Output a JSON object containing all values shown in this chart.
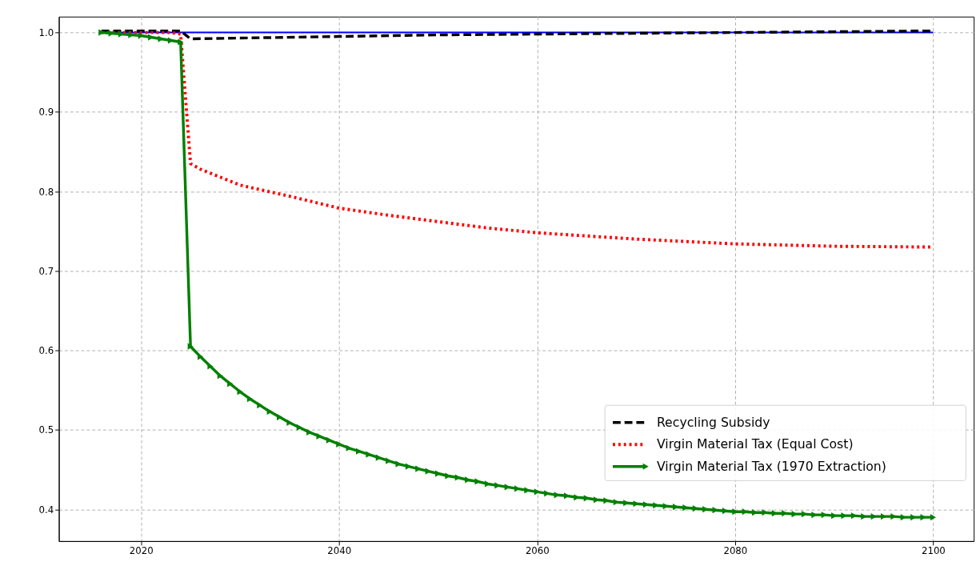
{
  "chart_data": {
    "type": "line",
    "xlim": [
      2011.7,
      2104.1
    ],
    "ylim": [
      0.36,
      1.02
    ],
    "xticks": [
      2020,
      2040,
      2060,
      2080,
      2100
    ],
    "yticks": [
      0.4,
      0.5,
      0.6,
      0.7,
      0.8,
      0.9,
      {
        "value": 1.0,
        "label": "1.0"
      }
    ],
    "grid": true,
    "legend": "bottom right",
    "series": [
      {
        "color": "#0000ff",
        "line_style": "solid",
        "x": [
          2016,
          2100
        ],
        "values": [
          1.0,
          1.0
        ]
      },
      {
        "name": "Recycling Subsidy",
        "color": "#000000",
        "line_style": "dashed",
        "x": [
          2016,
          2020,
          2024,
          2025,
          2030,
          2040,
          2050,
          2060,
          2070,
          2080,
          2090,
          2100
        ],
        "values": [
          1.002,
          1.002,
          1.002,
          0.992,
          0.993,
          0.995,
          0.997,
          0.998,
          0.999,
          1.0,
          1.001,
          1.002
        ]
      },
      {
        "name": "Virgin Material Tax (Equal Cost)",
        "color": "#ff0000",
        "line_style": "dotted",
        "x": [
          2016,
          2020,
          2023,
          2024,
          2025,
          2026,
          2028,
          2030,
          2035,
          2040,
          2045,
          2050,
          2055,
          2060,
          2070,
          2080,
          2090,
          2100
        ],
        "values": [
          1.0,
          1.0,
          1.0,
          0.998,
          0.835,
          0.828,
          0.818,
          0.808,
          0.794,
          0.779,
          0.77,
          0.762,
          0.754,
          0.748,
          0.74,
          0.734,
          0.731,
          0.73
        ]
      },
      {
        "name": "Virgin Material Tax (1970 Extraction)",
        "color": "#008000",
        "line_style": "solid",
        "marker": "triangle",
        "x": [
          2016,
          2017,
          2018,
          2019,
          2020,
          2021,
          2022,
          2023,
          2024,
          2025,
          2026,
          2027,
          2028,
          2029,
          2030,
          2031,
          2032,
          2033,
          2034,
          2035,
          2036,
          2037,
          2038,
          2039,
          2040,
          2041,
          2042,
          2043,
          2044,
          2045,
          2046,
          2047,
          2048,
          2049,
          2050,
          2051,
          2052,
          2053,
          2054,
          2055,
          2056,
          2057,
          2058,
          2059,
          2060,
          2061,
          2062,
          2063,
          2064,
          2065,
          2066,
          2067,
          2068,
          2069,
          2070,
          2071,
          2072,
          2073,
          2074,
          2075,
          2076,
          2077,
          2078,
          2079,
          2080,
          2081,
          2082,
          2083,
          2084,
          2085,
          2086,
          2087,
          2088,
          2089,
          2090,
          2091,
          2092,
          2093,
          2094,
          2095,
          2096,
          2097,
          2098,
          2099,
          2100
        ],
        "values": [
          1.0,
          0.999,
          0.998,
          0.997,
          0.996,
          0.994,
          0.992,
          0.99,
          0.988,
          0.605,
          0.592,
          0.58,
          0.568,
          0.558,
          0.548,
          0.539,
          0.531,
          0.523,
          0.516,
          0.509,
          0.503,
          0.497,
          0.492,
          0.487,
          0.482,
          0.477,
          0.473,
          0.469,
          0.465,
          0.461,
          0.457,
          0.454,
          0.451,
          0.448,
          0.445,
          0.442,
          0.44,
          0.437,
          0.435,
          0.432,
          0.43,
          0.428,
          0.426,
          0.424,
          0.422,
          0.42,
          0.418,
          0.417,
          0.415,
          0.414,
          0.412,
          0.411,
          0.409,
          0.408,
          0.407,
          0.406,
          0.405,
          0.404,
          0.403,
          0.402,
          0.401,
          0.4,
          0.399,
          0.398,
          0.397,
          0.397,
          0.396,
          0.396,
          0.395,
          0.395,
          0.394,
          0.394,
          0.393,
          0.393,
          0.392,
          0.392,
          0.392,
          0.391,
          0.391,
          0.391,
          0.391,
          0.39,
          0.39,
          0.39,
          0.39
        ]
      }
    ]
  }
}
